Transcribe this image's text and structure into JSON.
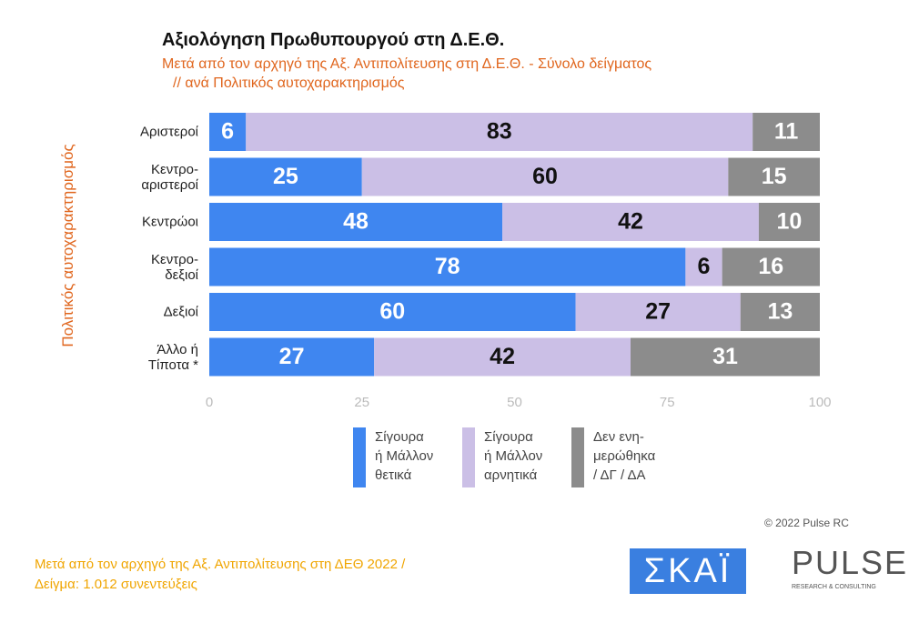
{
  "chart_data": {
    "type": "stacked_bar_horizontal",
    "title": "Αξιολόγηση Πρωθυπουργού στη Δ.Ε.Θ.",
    "subtitle": [
      "Μετά από τον αρχηγό της Αξ. Αντιπολίτευσης στη Δ.Ε.Θ.  - Σύνολο δείγματος",
      " // ανά Πολιτικός αυτοχαρακτηρισμός"
    ],
    "y_label": "Πολιτικός αυτοχαρακτηρισμός",
    "categories": [
      "Αριστεροί",
      "Κεντρο-\nαριστεροί",
      "Κεντρώοι",
      "Κεντρο-\nδεξιοί",
      "Δεξιοί",
      "Άλλο ή\nΤίποτα *"
    ],
    "series": [
      {
        "name": "Σίγουρα\nή Μάλλον\nθετικά",
        "color": "#3f86f0",
        "label_color": "#ffffff",
        "values": [
          6,
          25,
          48,
          78,
          60,
          27
        ]
      },
      {
        "name": "Σίγουρα\nή Μάλλον\nαρνητικά",
        "color": "#cbbfe6",
        "label_color": "#111111",
        "values": [
          83,
          60,
          42,
          6,
          27,
          42
        ]
      },
      {
        "name": "Δεν ενη-\nμερώθηκα\n/ ΔΓ / ΔΑ",
        "color": "#8c8c8c",
        "label_color": "#ffffff",
        "values": [
          11,
          15,
          10,
          16,
          13,
          31
        ]
      }
    ],
    "xlim": [
      0,
      100
    ],
    "xticks": [
      0,
      25,
      50,
      75,
      100
    ]
  },
  "footer": {
    "note": [
      "Μετά από τον αρχηγό της Αξ. Αντιπολίτευσης στη ΔΕΘ  2022  /",
      "Δείγμα:  1.012 συνεντεύξεις"
    ],
    "copyright": "© 2022 Pulse RC",
    "logo_left": "ΣΚΑΪ",
    "logo_right": "PULSE",
    "logo_right_sub": "RESEARCH & CONSULTING"
  }
}
